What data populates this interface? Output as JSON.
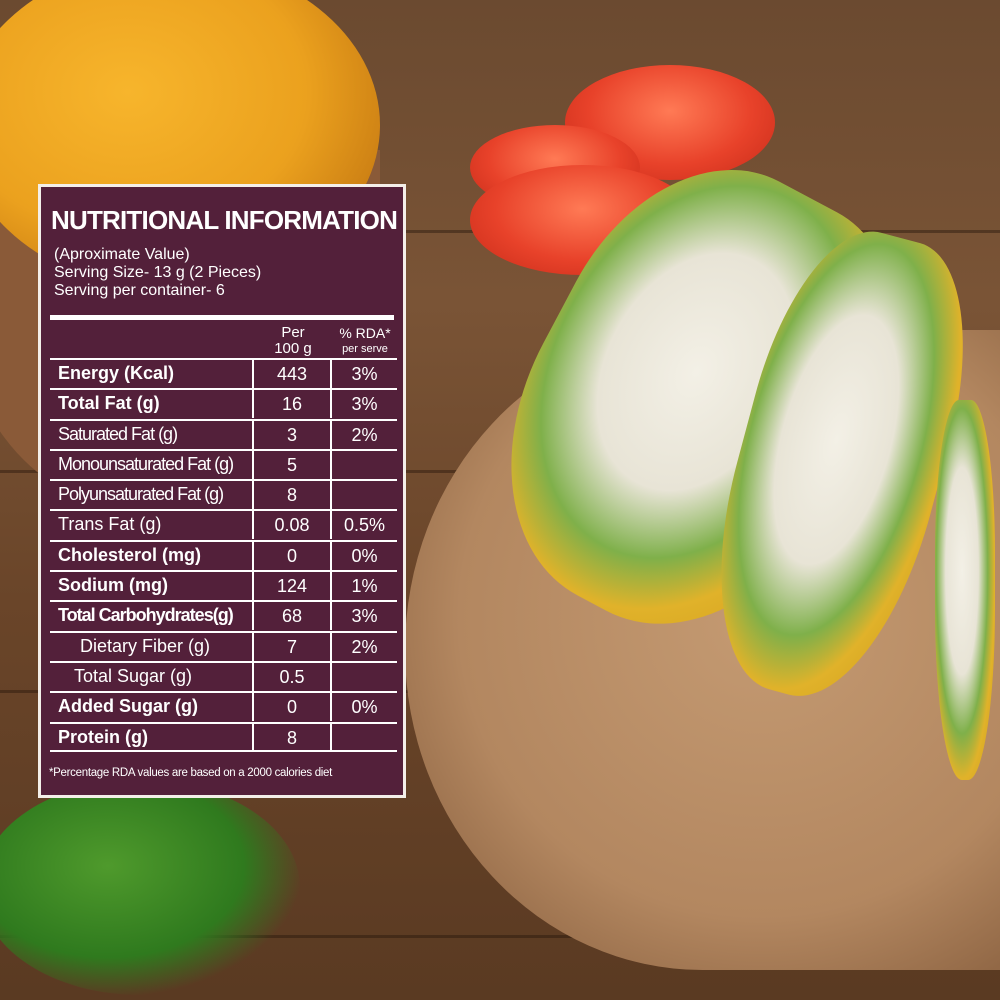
{
  "label": {
    "title": "NUTRITIONAL INFORMATION",
    "intro": [
      "(Aproximate Value)",
      "Serving Size- 13 g (2 Pieces)",
      "Serving per container- 6"
    ],
    "col_per": [
      "Per",
      "100 g"
    ],
    "col_rda": [
      "% RDA*",
      "per serve"
    ],
    "rows": [
      {
        "name": "Energy (Kcal)",
        "value": "443",
        "rda": "3%",
        "style": "b"
      },
      {
        "name": "Total Fat (g)",
        "value": "16",
        "rda": "3%",
        "style": "b"
      },
      {
        "name": "Saturated Fat (g)",
        "value": "3",
        "rda": "2%",
        "style": "c"
      },
      {
        "name": "Monounsaturated Fat (g)",
        "value": "5",
        "rda": "",
        "style": "c"
      },
      {
        "name": "Polyunsaturated Fat (g)",
        "value": "8",
        "rda": "",
        "style": "c"
      },
      {
        "name": "Trans Fat (g)",
        "value": "0.08",
        "rda": "0.5%",
        "style": ""
      },
      {
        "name": "Cholesterol (mg)",
        "value": "0",
        "rda": "0%",
        "style": "b"
      },
      {
        "name": "Sodium (mg)",
        "value": "124",
        "rda": "1%",
        "style": "b"
      },
      {
        "name": "Total Carbohydrates(g)",
        "value": "68",
        "rda": "3%",
        "style": "b c"
      },
      {
        "name": "Dietary Fiber (g)",
        "value": "7",
        "rda": "2%",
        "style": "i1"
      },
      {
        "name": "Total Sugar (g)",
        "value": "0.5",
        "rda": "",
        "style": "i2"
      },
      {
        "name": "Added Sugar (g)",
        "value": "0",
        "rda": "0%",
        "style": "b"
      },
      {
        "name": "Protein (g)",
        "value": "8",
        "rda": "",
        "style": "b"
      }
    ],
    "footnote": "*Percentage RDA values are based on a 2000 calories diet"
  },
  "colors": {
    "label_bg": "#53203a",
    "label_text": "#ffffff"
  }
}
